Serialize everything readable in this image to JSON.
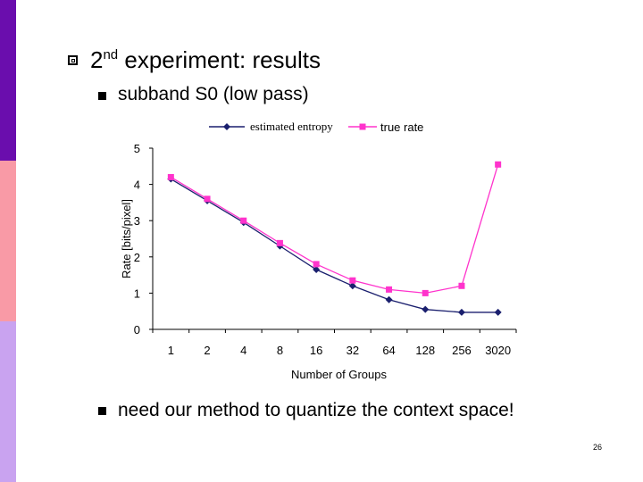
{
  "slide": {
    "heading_main": "2",
    "heading_sup": "nd",
    "heading_rest": " experiment: results",
    "bullet1": "subband S0 (low pass)",
    "bullet2": "need our method to quantize the context space!",
    "page_number": "26"
  },
  "colors": {
    "stripe_top": "#6a0dad",
    "stripe_mid": "#f99aa6",
    "stripe_bottom": "#c9a3f0",
    "series_estimated": "#1a1f6e",
    "series_true": "#ff33cc"
  },
  "chart_data": {
    "type": "line",
    "categories": [
      "1",
      "2",
      "4",
      "8",
      "16",
      "32",
      "64",
      "128",
      "256",
      "3020"
    ],
    "series": [
      {
        "name": "estimated entropy",
        "values": [
          4.15,
          3.55,
          2.95,
          2.3,
          1.65,
          1.2,
          0.82,
          0.55,
          0.47,
          0.47
        ]
      },
      {
        "name": "true rate",
        "values": [
          4.2,
          3.6,
          3.0,
          2.38,
          1.8,
          1.35,
          1.1,
          1.0,
          1.2,
          4.55
        ]
      }
    ],
    "xlabel": "Number of Groups",
    "ylabel": "Rate [bits/pixel]",
    "ylim": [
      0,
      5
    ],
    "yticks": [
      "0",
      "1",
      "2",
      "3",
      "4",
      "5"
    ],
    "legend_position": "top",
    "grid": false
  }
}
